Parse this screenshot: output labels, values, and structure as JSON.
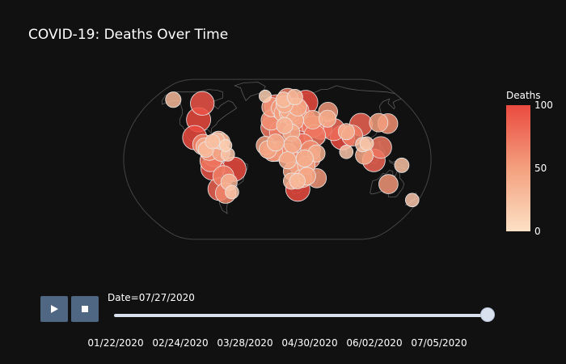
{
  "chart_data": {
    "type": "scatter_geo",
    "title": "COVID-19: Deaths Over Time",
    "projection": "natural earth",
    "colorbar": {
      "title": "Deaths",
      "range": [
        0,
        100
      ],
      "ticks": [
        "100",
        "50",
        "0"
      ],
      "colors": [
        "#fde0c5",
        "#f3a07e",
        "#eb4a40"
      ]
    },
    "frame_label": "Date=07/27/2020",
    "slider_ticks": [
      "01/22/2020",
      "02/24/2020",
      "03/28/2020",
      "04/30/2020",
      "06/02/2020",
      "07/05/2020"
    ],
    "current_frame": "07/27/2020",
    "slider_position": 1.0,
    "points": [
      {
        "lon": -150,
        "lat": 61,
        "value": 30
      },
      {
        "lon": -105,
        "lat": 57,
        "value": 95
      },
      {
        "lon": -100,
        "lat": 40,
        "value": 100
      },
      {
        "lon": -99,
        "lat": 22,
        "value": 100
      },
      {
        "lon": -88,
        "lat": 15,
        "value": 65
      },
      {
        "lon": -86,
        "lat": 13,
        "value": 40
      },
      {
        "lon": -84,
        "lat": 10,
        "value": 30
      },
      {
        "lon": -80,
        "lat": 9,
        "value": 60
      },
      {
        "lon": -77,
        "lat": 18,
        "value": 25
      },
      {
        "lon": -72,
        "lat": 19,
        "value": 30
      },
      {
        "lon": -70,
        "lat": 19,
        "value": 50
      },
      {
        "lon": -66,
        "lat": 18,
        "value": 35
      },
      {
        "lon": -61,
        "lat": 14,
        "value": 15
      },
      {
        "lon": -74,
        "lat": 4,
        "value": 80
      },
      {
        "lon": -66,
        "lat": 7,
        "value": 45
      },
      {
        "lon": -58,
        "lat": 5,
        "value": 20
      },
      {
        "lon": -78,
        "lat": -1.5,
        "value": 75
      },
      {
        "lon": -76,
        "lat": -9,
        "value": 95
      },
      {
        "lon": -64,
        "lat": -17,
        "value": 70
      },
      {
        "lon": -51,
        "lat": -10,
        "value": 100
      },
      {
        "lon": -58,
        "lat": -23,
        "value": 35
      },
      {
        "lon": -71,
        "lat": -30,
        "value": 85
      },
      {
        "lon": -64,
        "lat": -34,
        "value": 65
      },
      {
        "lon": -56,
        "lat": -33,
        "value": 20
      },
      {
        "lon": -18,
        "lat": 65,
        "value": 15
      },
      {
        "lon": -8,
        "lat": 53,
        "value": 55
      },
      {
        "lon": -2,
        "lat": 54,
        "value": 85
      },
      {
        "lon": -4,
        "lat": 40,
        "value": 75
      },
      {
        "lon": -8,
        "lat": 39.5,
        "value": 60
      },
      {
        "lon": 2,
        "lat": 46,
        "value": 80
      },
      {
        "lon": 5,
        "lat": 52,
        "value": 55
      },
      {
        "lon": 4.5,
        "lat": 50.5,
        "value": 60
      },
      {
        "lon": 10,
        "lat": 51,
        "value": 75
      },
      {
        "lon": 8,
        "lat": 47,
        "value": 50
      },
      {
        "lon": 12.5,
        "lat": 42,
        "value": 85
      },
      {
        "lon": 14,
        "lat": 47.5,
        "value": 45
      },
      {
        "lon": 10,
        "lat": 56,
        "value": 40
      },
      {
        "lon": 15,
        "lat": 62,
        "value": 70
      },
      {
        "lon": 9,
        "lat": 61,
        "value": 30
      },
      {
        "lon": 26,
        "lat": 64,
        "value": 30
      },
      {
        "lon": 19,
        "lat": 52,
        "value": 60
      },
      {
        "lon": 15,
        "lat": 50,
        "value": 45
      },
      {
        "lon": 19,
        "lat": 47,
        "value": 50
      },
      {
        "lon": 25,
        "lat": 46,
        "value": 60
      },
      {
        "lon": 22,
        "lat": 39,
        "value": 45
      },
      {
        "lon": 28,
        "lat": 49,
        "value": 70
      },
      {
        "lon": 28,
        "lat": 53,
        "value": 45
      },
      {
        "lon": 40,
        "lat": 58,
        "value": 100
      },
      {
        "lon": 35,
        "lat": 39,
        "value": 80
      },
      {
        "lon": 44,
        "lat": 33,
        "value": 75
      },
      {
        "lon": 53,
        "lat": 32,
        "value": 90
      },
      {
        "lon": 45,
        "lat": 24,
        "value": 75
      },
      {
        "lon": 45,
        "lat": 40,
        "value": 50
      },
      {
        "lon": 67,
        "lat": 48,
        "value": 55
      },
      {
        "lon": 64,
        "lat": 41,
        "value": 40
      },
      {
        "lon": 69,
        "lat": 30,
        "value": 80
      },
      {
        "lon": 78,
        "lat": 22,
        "value": 100
      },
      {
        "lon": 90,
        "lat": 24,
        "value": 70
      },
      {
        "lon": 84,
        "lat": 28,
        "value": 35
      },
      {
        "lon": 81,
        "lat": 7.5,
        "value": 20
      },
      {
        "lon": 104,
        "lat": 35,
        "value": 85
      },
      {
        "lon": 127,
        "lat": 37,
        "value": 50
      },
      {
        "lon": 138,
        "lat": 36,
        "value": 60
      },
      {
        "lon": 101,
        "lat": 15,
        "value": 25
      },
      {
        "lon": 106,
        "lat": 16,
        "value": 20
      },
      {
        "lon": 102,
        "lat": 4,
        "value": 45
      },
      {
        "lon": 122,
        "lat": 12,
        "value": 75
      },
      {
        "lon": 113,
        "lat": -1,
        "value": 85
      },
      {
        "lon": 146,
        "lat": -6,
        "value": 25
      },
      {
        "lon": 134,
        "lat": -25,
        "value": 55
      },
      {
        "lon": 172,
        "lat": -41,
        "value": 20
      },
      {
        "lon": 3,
        "lat": 28,
        "value": 70
      },
      {
        "lon": -7,
        "lat": 32,
        "value": 75
      },
      {
        "lon": 9,
        "lat": 34,
        "value": 35
      },
      {
        "lon": 17,
        "lat": 27,
        "value": 40
      },
      {
        "lon": 30,
        "lat": 27,
        "value": 90
      },
      {
        "lon": -14,
        "lat": 14,
        "value": 50
      },
      {
        "lon": -11,
        "lat": 10,
        "value": 45
      },
      {
        "lon": -5,
        "lat": 7.5,
        "value": 55
      },
      {
        "lon": -1,
        "lat": 8,
        "value": 60
      },
      {
        "lon": 8,
        "lat": 9,
        "value": 85
      },
      {
        "lon": -2,
        "lat": 17,
        "value": 40
      },
      {
        "lon": 12,
        "lat": 6,
        "value": 60
      },
      {
        "lon": 18,
        "lat": 15,
        "value": 40
      },
      {
        "lon": 30,
        "lat": 15,
        "value": 75
      },
      {
        "lon": 39,
        "lat": 9,
        "value": 60
      },
      {
        "lon": 46,
        "lat": 6,
        "value": 40
      },
      {
        "lon": 38,
        "lat": 1,
        "value": 70
      },
      {
        "lon": 32,
        "lat": 1,
        "value": 40
      },
      {
        "lon": 34,
        "lat": -6,
        "value": 45
      },
      {
        "lon": 23,
        "lat": -3,
        "value": 65
      },
      {
        "lon": 12,
        "lat": -1,
        "value": 40
      },
      {
        "lon": 18,
        "lat": -12,
        "value": 50
      },
      {
        "lon": 28,
        "lat": -14,
        "value": 55
      },
      {
        "lon": 30,
        "lat": -19,
        "value": 50
      },
      {
        "lon": 35,
        "lat": -17,
        "value": 45
      },
      {
        "lon": 47,
        "lat": -19,
        "value": 55
      },
      {
        "lon": 24,
        "lat": -22,
        "value": 30
      },
      {
        "lon": 17,
        "lat": -22,
        "value": 35
      },
      {
        "lon": 25,
        "lat": -30,
        "value": 100
      }
    ]
  }
}
